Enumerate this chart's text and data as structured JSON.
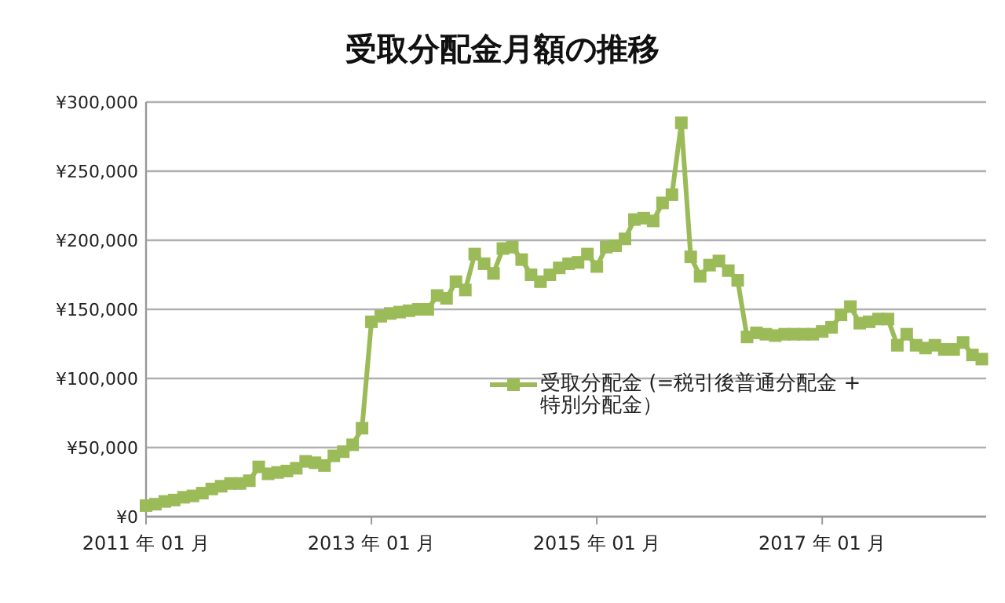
{
  "chart_data": {
    "type": "line",
    "title": "受取分配金月額の推移",
    "x": [
      "2011-01",
      "2011-02",
      "2011-03",
      "2011-04",
      "2011-05",
      "2011-06",
      "2011-07",
      "2011-08",
      "2011-09",
      "2011-10",
      "2011-11",
      "2011-12",
      "2012-01",
      "2012-02",
      "2012-03",
      "2012-04",
      "2012-05",
      "2012-06",
      "2012-07",
      "2012-08",
      "2012-09",
      "2012-10",
      "2012-11",
      "2012-12",
      "2013-01",
      "2013-02",
      "2013-03",
      "2013-04",
      "2013-05",
      "2013-06",
      "2013-07",
      "2013-08",
      "2013-09",
      "2013-10",
      "2013-11",
      "2013-12",
      "2014-01",
      "2014-02",
      "2014-03",
      "2014-04",
      "2014-05",
      "2014-06",
      "2014-07",
      "2014-08",
      "2014-09",
      "2014-10",
      "2014-11",
      "2014-12",
      "2015-01",
      "2015-02",
      "2015-03",
      "2015-04",
      "2015-05",
      "2015-06",
      "2015-07",
      "2015-08",
      "2015-09",
      "2015-10",
      "2015-11",
      "2015-12",
      "2016-01",
      "2016-02",
      "2016-03",
      "2016-04",
      "2016-05",
      "2016-06",
      "2016-07",
      "2016-08",
      "2016-09",
      "2016-10",
      "2016-11",
      "2016-12",
      "2017-01",
      "2017-02",
      "2017-03",
      "2017-04",
      "2017-05",
      "2017-06",
      "2017-07",
      "2017-08",
      "2017-09",
      "2017-10",
      "2017-11",
      "2017-12",
      "2018-01",
      "2018-02",
      "2018-03",
      "2018-04",
      "2018-05",
      "2018-06"
    ],
    "series": [
      {
        "name": "受取分配金 (=税引後普通分配金 + 特別分配金）",
        "color": "#9bbb59",
        "values": [
          8000,
          9000,
          11000,
          12000,
          14000,
          15000,
          17000,
          20000,
          22000,
          24000,
          24000,
          26000,
          36000,
          31000,
          32000,
          33000,
          35000,
          40000,
          39000,
          37000,
          44000,
          47000,
          52000,
          64000,
          141000,
          145000,
          147000,
          148000,
          149000,
          150000,
          150000,
          160000,
          158000,
          170000,
          164000,
          190000,
          183000,
          176000,
          194000,
          195000,
          186000,
          175000,
          170000,
          175000,
          180000,
          183000,
          184000,
          190000,
          181000,
          195000,
          196000,
          201000,
          215000,
          216000,
          214000,
          227000,
          233000,
          285000,
          188000,
          174000,
          182000,
          185000,
          178000,
          171000,
          130000,
          133000,
          132000,
          131000,
          132000,
          132000,
          132000,
          132000,
          134000,
          137000,
          146000,
          152000,
          140000,
          141000,
          143000,
          143000,
          124000,
          132000,
          124000,
          122000,
          124000,
          121000,
          121000,
          126000,
          117000,
          114000
        ]
      }
    ],
    "xlim": [
      "2011-01",
      "2018-06-15"
    ],
    "xticks": [
      {
        "value": "2011-01",
        "label": "2011 年 01 月"
      },
      {
        "value": "2013-01",
        "label": "2013 年 01 月"
      },
      {
        "value": "2015-01",
        "label": "2015 年 01 月"
      },
      {
        "value": "2017-01",
        "label": "2017 年 01 月"
      }
    ],
    "ylim": [
      0,
      300000
    ],
    "yticks": [
      {
        "value": 0,
        "label": "¥0"
      },
      {
        "value": 50000,
        "label": "¥50,000"
      },
      {
        "value": 100000,
        "label": "¥100,000"
      },
      {
        "value": 150000,
        "label": "¥150,000"
      },
      {
        "value": 200000,
        "label": "¥200,000"
      },
      {
        "value": 250000,
        "label": "¥250,000"
      },
      {
        "value": 300000,
        "label": "¥300,000"
      }
    ],
    "grid": "y",
    "legend": "right",
    "marker": "square",
    "line_style": "solid"
  }
}
